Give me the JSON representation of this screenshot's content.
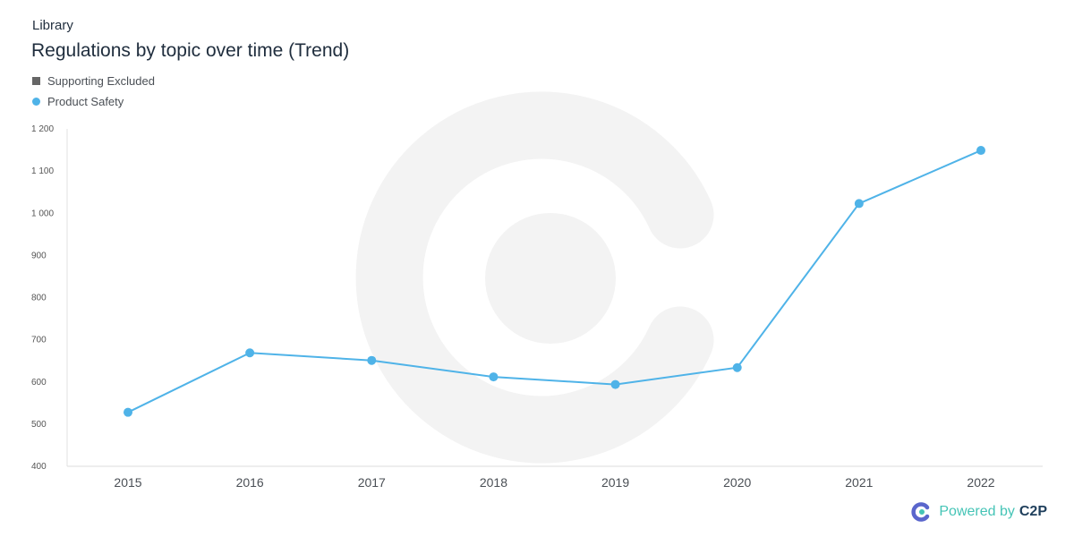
{
  "header": {
    "eyebrow": "Library",
    "title": "Regulations by topic over time (Trend)"
  },
  "legend": [
    {
      "label": "Supporting Excluded",
      "color": "#666666",
      "marker": "square"
    },
    {
      "label": "Product Safety",
      "color": "#4fb3e8",
      "marker": "circle"
    }
  ],
  "footer": {
    "powered_label": "Powered by",
    "brand": "C2P"
  },
  "chart_data": {
    "type": "line",
    "x": [
      "2015",
      "2016",
      "2017",
      "2018",
      "2019",
      "2020",
      "2021",
      "2022"
    ],
    "series": [
      {
        "name": "Product Safety",
        "color": "#4fb3e8",
        "values": [
          528,
          669,
          651,
          612,
          594,
          634,
          1023,
          1149
        ]
      }
    ],
    "ylim": [
      400,
      1200
    ],
    "yticks": [
      400,
      500,
      600,
      700,
      800,
      900,
      1000,
      1100,
      1200
    ],
    "ytick_labels": [
      "400",
      "500",
      "600",
      "700",
      "800",
      "900",
      "1 000",
      "1 100",
      "1 200"
    ],
    "grid": false,
    "legend_position": "top-left"
  }
}
